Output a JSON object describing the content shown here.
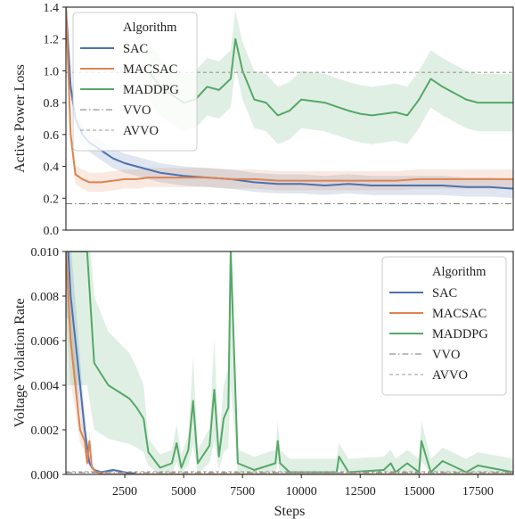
{
  "colors": {
    "SAC": "#4c72b0",
    "MACSAC": "#dd8452",
    "MADDPG": "#55a868",
    "VVO": "#7a7a7a",
    "AVVO": "#9a9a9a",
    "axes_border": "#222222"
  },
  "chart_data": [
    {
      "type": "line",
      "ylabel": "Active Power Loss",
      "xlabel": "",
      "xlim": [
        0,
        19000
      ],
      "ylim": [
        0,
        1.4
      ],
      "yticks": [
        "0.0",
        "0.2",
        "0.4",
        "0.6",
        "0.8",
        "1.0",
        "1.2",
        "1.4"
      ],
      "grid": false,
      "legend": {
        "title": "Algorithm",
        "position": "top-left",
        "entries": [
          {
            "label": "SAC",
            "style": "solid",
            "color": "#4c72b0"
          },
          {
            "label": "MACSAC",
            "style": "solid",
            "color": "#dd8452"
          },
          {
            "label": "MADDPG",
            "style": "solid",
            "color": "#55a868"
          },
          {
            "label": "VVO",
            "style": "dashdot",
            "color": "#7a7a7a"
          },
          {
            "label": "AVVO",
            "style": "dashed",
            "color": "#9a9a9a"
          }
        ]
      },
      "series": [
        {
          "name": "SAC",
          "x": [
            0,
            200,
            400,
            700,
            1000,
            1500,
            2000,
            2500,
            3000,
            3500,
            4000,
            5000,
            6000,
            7000,
            8000,
            9000,
            10000,
            11000,
            12000,
            13000,
            14000,
            15000,
            16000,
            17000,
            18000,
            19000
          ],
          "y": [
            1.4,
            0.9,
            0.7,
            0.6,
            0.55,
            0.5,
            0.45,
            0.42,
            0.4,
            0.38,
            0.36,
            0.34,
            0.33,
            0.32,
            0.3,
            0.29,
            0.29,
            0.28,
            0.29,
            0.28,
            0.28,
            0.28,
            0.28,
            0.27,
            0.27,
            0.26
          ]
        },
        {
          "name": "MACSAC",
          "x": [
            0,
            200,
            400,
            700,
            1000,
            1500,
            2000,
            2500,
            3000,
            3500,
            4000,
            5000,
            6000,
            7000,
            8000,
            9000,
            10000,
            11000,
            12000,
            13000,
            14000,
            15000,
            16000,
            17000,
            18000,
            19000
          ],
          "y": [
            1.4,
            0.6,
            0.35,
            0.32,
            0.3,
            0.3,
            0.31,
            0.32,
            0.32,
            0.33,
            0.33,
            0.33,
            0.33,
            0.32,
            0.32,
            0.31,
            0.31,
            0.31,
            0.31,
            0.31,
            0.31,
            0.32,
            0.32,
            0.32,
            0.32,
            0.32
          ]
        },
        {
          "name": "MADDPG",
          "x": [
            3500,
            4000,
            4500,
            5000,
            5500,
            6000,
            6500,
            7000,
            7200,
            7500,
            8000,
            8500,
            9000,
            9500,
            10000,
            11000,
            12000,
            12500,
            13000,
            14000,
            14500,
            15000,
            15500,
            16000,
            17000,
            17500,
            18000,
            19000
          ],
          "y": [
            1.0,
            0.9,
            0.85,
            0.8,
            0.82,
            0.9,
            0.88,
            0.95,
            1.2,
            1.0,
            0.82,
            0.8,
            0.72,
            0.75,
            0.82,
            0.8,
            0.75,
            0.73,
            0.72,
            0.74,
            0.72,
            0.82,
            0.95,
            0.9,
            0.82,
            0.8,
            0.8,
            0.8
          ]
        },
        {
          "name": "VVO",
          "x": [
            0,
            19000
          ],
          "y": [
            0.165,
            0.165
          ]
        },
        {
          "name": "AVVO",
          "x": [
            0,
            19000
          ],
          "y": [
            0.99,
            0.99
          ]
        }
      ]
    },
    {
      "type": "line",
      "ylabel": "Voltage Violation Rate",
      "xlabel": "Steps",
      "xlim": [
        0,
        19000
      ],
      "ylim": [
        0,
        0.01
      ],
      "xticks": [
        2500,
        5000,
        7500,
        10000,
        12500,
        15000,
        17500
      ],
      "xtick_labels": [
        "2500",
        "5000",
        "7500",
        "10000",
        "12500",
        "15000",
        "17500"
      ],
      "yticks": [
        "0.000",
        "0.002",
        "0.004",
        "0.006",
        "0.008",
        "0.010"
      ],
      "grid": false,
      "legend": {
        "title": "Algorithm",
        "position": "top-right",
        "entries": [
          {
            "label": "SAC",
            "style": "solid",
            "color": "#4c72b0"
          },
          {
            "label": "MACSAC",
            "style": "solid",
            "color": "#dd8452"
          },
          {
            "label": "MADDPG",
            "style": "solid",
            "color": "#55a868"
          },
          {
            "label": "VVO",
            "style": "dashdot",
            "color": "#7a7a7a"
          },
          {
            "label": "AVVO",
            "style": "dashed",
            "color": "#9a9a9a"
          }
        ]
      },
      "series": [
        {
          "name": "SAC",
          "x": [
            0,
            100,
            200,
            400,
            600,
            800,
            1000,
            1200,
            1500,
            2000,
            2500,
            3000,
            19000
          ],
          "y": [
            0.01,
            0.01,
            0.008,
            0.006,
            0.004,
            0.002,
            0.0005,
            0.0002,
            0.0001,
            0.0002,
            0.0001,
            0.0,
            0.0
          ]
        },
        {
          "name": "MACSAC",
          "x": [
            0,
            200,
            400,
            600,
            800,
            900,
            1000,
            1100,
            1300,
            1600,
            2000,
            19000
          ],
          "y": [
            0.01,
            0.006,
            0.004,
            0.002,
            0.0015,
            0.0005,
            0.0015,
            0.0003,
            0.0001,
            0.0,
            0.0,
            0.0
          ]
        },
        {
          "name": "MADDPG",
          "x": [
            0,
            300,
            600,
            900,
            1200,
            1500,
            1800,
            2100,
            2400,
            2700,
            3000,
            3300,
            3500,
            4000,
            4500,
            4700,
            4900,
            5200,
            5400,
            5600,
            6100,
            6300,
            6500,
            6700,
            6900,
            7000,
            7300,
            8000,
            8900,
            9000,
            9100,
            9500,
            11500,
            11600,
            12000,
            13500,
            13800,
            14000,
            14500,
            15000,
            15100,
            15500,
            16000,
            17000,
            17500,
            19000
          ],
          "y": [
            0.01,
            0.01,
            0.01,
            0.01,
            0.005,
            0.0045,
            0.004,
            0.0038,
            0.0036,
            0.0034,
            0.003,
            0.0025,
            0.001,
            0.0003,
            0.0005,
            0.0014,
            0.0003,
            0.0011,
            0.0033,
            0.0005,
            0.0013,
            0.0038,
            0.0008,
            0.0025,
            0.003,
            0.01,
            0.0005,
            0.0002,
            0.0005,
            0.0015,
            0.0005,
            0.0001,
            0.0001,
            0.0008,
            0.0001,
            0.0002,
            0.0005,
            0.0001,
            0.0005,
            0.0001,
            0.0015,
            0.0001,
            0.0006,
            0.0001,
            0.0004,
            0.0001
          ]
        },
        {
          "name": "VVO",
          "x": [
            0,
            19000
          ],
          "y": [
            8e-05,
            8e-05
          ]
        },
        {
          "name": "AVVO",
          "x": [
            0,
            19000
          ],
          "y": [
            0.00012,
            0.00012
          ]
        }
      ]
    }
  ]
}
